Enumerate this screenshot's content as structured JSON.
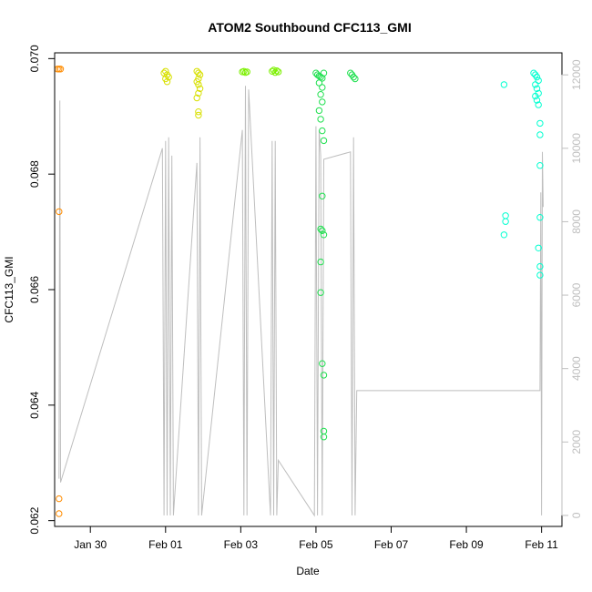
{
  "chart_data": {
    "type": "scatter",
    "title": "ATOM2 Southbound CFC113_GMI",
    "xlabel": "Date",
    "ylabel": "CFC113_GMI",
    "x_ticks": [
      "Jan 30",
      "Feb 01",
      "Feb 03",
      "Feb 05",
      "Feb 07",
      "Feb 09",
      "Feb 11"
    ],
    "y_left_ticks": [
      "0.062",
      "0.064",
      "0.066",
      "0.068",
      "0.070"
    ],
    "y_right_ticks": [
      "0",
      "2000",
      "4000",
      "6000",
      "8000",
      "10000",
      "12000"
    ],
    "xlim": [
      "2017-01-29 01:12",
      "2017-02-11 13:00"
    ],
    "ylim_left": [
      0.0619,
      0.0701
    ],
    "ylim_right": [
      -300,
      12600
    ],
    "right_axis_color": "#bebebe",
    "grid": false,
    "series": [
      {
        "color": "#ff8c00",
        "marker": "open-circle",
        "points": [
          [
            "2017-01-29 03:00",
            0.06982
          ],
          [
            "2017-01-29 04:00",
            0.06982
          ],
          [
            "2017-01-29 05:00",
            0.06982
          ],
          [
            "2017-01-29 04:00",
            0.06735
          ],
          [
            "2017-01-29 04:00",
            0.06238
          ],
          [
            "2017-01-29 04:00",
            0.06212
          ]
        ]
      },
      {
        "color": "#d8e000",
        "marker": "open-circle",
        "points": [
          [
            "2017-01-31 23:00",
            0.06975
          ],
          [
            "2017-02-01 00:00",
            0.06978
          ],
          [
            "2017-02-01 01:00",
            0.06972
          ],
          [
            "2017-02-01 02:00",
            0.06968
          ],
          [
            "2017-02-01 00:00",
            0.06965
          ],
          [
            "2017-02-01 01:00",
            0.0696
          ],
          [
            "2017-02-01 20:00",
            0.06978
          ],
          [
            "2017-02-01 21:00",
            0.06975
          ],
          [
            "2017-02-01 22:00",
            0.06972
          ],
          [
            "2017-02-01 21:00",
            0.06965
          ],
          [
            "2017-02-01 20:00",
            0.0696
          ],
          [
            "2017-02-01 21:00",
            0.06955
          ],
          [
            "2017-02-01 22:00",
            0.06948
          ],
          [
            "2017-02-01 21:00",
            0.0694
          ],
          [
            "2017-02-01 20:00",
            0.06932
          ],
          [
            "2017-02-01 21:00",
            0.06908
          ],
          [
            "2017-02-01 21:00",
            0.06902
          ]
        ]
      },
      {
        "color": "#7cf000",
        "marker": "open-circle",
        "points": [
          [
            "2017-02-03 01:00",
            0.06977
          ],
          [
            "2017-02-03 02:00",
            0.06978
          ],
          [
            "2017-02-03 03:00",
            0.06976
          ],
          [
            "2017-02-03 04:00",
            0.06977
          ],
          [
            "2017-02-03 20:00",
            0.06978
          ],
          [
            "2017-02-03 21:00",
            0.0698
          ],
          [
            "2017-02-03 22:00",
            0.06976
          ],
          [
            "2017-02-03 23:00",
            0.06979
          ],
          [
            "2017-02-04 00:00",
            0.06977
          ]
        ]
      },
      {
        "color": "#20e050",
        "marker": "open-circle",
        "points": [
          [
            "2017-02-05 00:00",
            0.06975
          ],
          [
            "2017-02-05 01:00",
            0.06972
          ],
          [
            "2017-02-05 02:00",
            0.0697
          ],
          [
            "2017-02-05 03:00",
            0.06968
          ],
          [
            "2017-02-05 04:00",
            0.06966
          ],
          [
            "2017-02-05 05:00",
            0.06975
          ],
          [
            "2017-02-05 02:00",
            0.06958
          ],
          [
            "2017-02-05 04:00",
            0.0695
          ],
          [
            "2017-02-05 03:00",
            0.06938
          ],
          [
            "2017-02-05 04:00",
            0.06925
          ],
          [
            "2017-02-05 02:00",
            0.0691
          ],
          [
            "2017-02-05 03:00",
            0.06895
          ],
          [
            "2017-02-05 04:00",
            0.06875
          ],
          [
            "2017-02-05 05:00",
            0.06858
          ],
          [
            "2017-02-05 04:00",
            0.06762
          ],
          [
            "2017-02-05 03:00",
            0.06705
          ],
          [
            "2017-02-05 04:00",
            0.06702
          ],
          [
            "2017-02-05 05:00",
            0.06695
          ],
          [
            "2017-02-05 03:00",
            0.06648
          ],
          [
            "2017-02-05 03:00",
            0.06595
          ],
          [
            "2017-02-05 04:00",
            0.06472
          ],
          [
            "2017-02-05 05:00",
            0.06452
          ],
          [
            "2017-02-05 05:00",
            0.06355
          ],
          [
            "2017-02-05 05:00",
            0.06345
          ],
          [
            "2017-02-05 22:00",
            0.06975
          ],
          [
            "2017-02-05 23:00",
            0.06972
          ],
          [
            "2017-02-06 00:00",
            0.06968
          ],
          [
            "2017-02-06 01:00",
            0.06965
          ]
        ]
      },
      {
        "color": "#00ffd0",
        "marker": "open-circle",
        "points": [
          [
            "2017-02-10 00:00",
            0.06955
          ],
          [
            "2017-02-10 01:00",
            0.06728
          ],
          [
            "2017-02-10 01:00",
            0.06718
          ],
          [
            "2017-02-10 00:00",
            0.06695
          ],
          [
            "2017-02-10 19:00",
            0.06975
          ],
          [
            "2017-02-10 20:00",
            0.06972
          ],
          [
            "2017-02-10 21:00",
            0.06968
          ],
          [
            "2017-02-10 22:00",
            0.06962
          ],
          [
            "2017-02-10 20:00",
            0.06955
          ],
          [
            "2017-02-10 21:00",
            0.06948
          ],
          [
            "2017-02-10 22:00",
            0.0694
          ],
          [
            "2017-02-10 20:00",
            0.06935
          ],
          [
            "2017-02-10 21:00",
            0.06928
          ],
          [
            "2017-02-10 22:00",
            0.0692
          ],
          [
            "2017-02-10 23:00",
            0.06888
          ],
          [
            "2017-02-10 23:00",
            0.06868
          ],
          [
            "2017-02-10 23:00",
            0.06815
          ],
          [
            "2017-02-10 23:00",
            0.06725
          ],
          [
            "2017-02-10 22:00",
            0.06672
          ],
          [
            "2017-02-10 23:00",
            0.0664
          ],
          [
            "2017-02-10 23:00",
            0.06625
          ]
        ]
      }
    ],
    "altitude_series": {
      "axis": "right",
      "color": "#bebebe",
      "type": "line",
      "points": [
        [
          "2017-01-29 04:00",
          1000
        ],
        [
          "2017-01-29 04:30",
          11300
        ],
        [
          "2017-01-29 05:00",
          900
        ],
        [
          "2017-01-31 22:00",
          10000
        ],
        [
          "2017-01-31 23:00",
          0
        ],
        [
          "2017-02-01 00:00",
          10200
        ],
        [
          "2017-02-01 01:00",
          0
        ],
        [
          "2017-02-01 02:00",
          10300
        ],
        [
          "2017-02-01 03:00",
          0
        ],
        [
          "2017-02-01 04:00",
          9800
        ],
        [
          "2017-02-01 05:00",
          0
        ],
        [
          "2017-02-01 20:00",
          9600
        ],
        [
          "2017-02-01 21:00",
          0
        ],
        [
          "2017-02-01 22:00",
          10300
        ],
        [
          "2017-02-01 23:00",
          0
        ],
        [
          "2017-02-03 01:00",
          10500
        ],
        [
          "2017-02-03 02:00",
          0
        ],
        [
          "2017-02-03 03:00",
          11700
        ],
        [
          "2017-02-03 04:00",
          0
        ],
        [
          "2017-02-03 05:00",
          11600
        ],
        [
          "2017-02-03 19:00",
          0
        ],
        [
          "2017-02-03 20:00",
          10200
        ],
        [
          "2017-02-03 21:00",
          0
        ],
        [
          "2017-02-03 22:00",
          10200
        ],
        [
          "2017-02-03 23:00",
          0
        ],
        [
          "2017-02-04 00:00",
          1500
        ],
        [
          "2017-02-04 23:00",
          0
        ],
        [
          "2017-02-05 00:00",
          10600
        ],
        [
          "2017-02-05 01:00",
          0
        ],
        [
          "2017-02-05 02:00",
          10500
        ],
        [
          "2017-02-05 03:00",
          9800
        ],
        [
          "2017-02-05 04:00",
          0
        ],
        [
          "2017-02-05 05:00",
          9700
        ],
        [
          "2017-02-05 22:00",
          9900
        ],
        [
          "2017-02-05 23:00",
          0
        ],
        [
          "2017-02-06 00:00",
          10300
        ],
        [
          "2017-02-06 01:00",
          0
        ],
        [
          "2017-02-06 02:00",
          3400
        ],
        [
          "2017-02-10 23:00",
          3400
        ],
        [
          "2017-02-10 23:30",
          8800
        ],
        [
          "2017-02-11 00:00",
          0
        ],
        [
          "2017-02-11 00:30",
          9900
        ],
        [
          "2017-02-11 01:00",
          8400
        ]
      ]
    }
  }
}
